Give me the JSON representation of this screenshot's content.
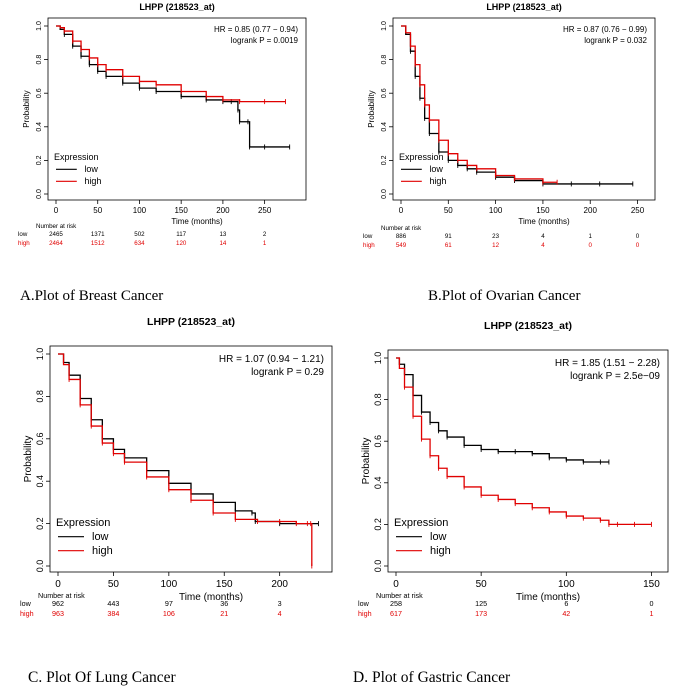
{
  "chart_data": [
    {
      "type": "line",
      "title": "LHPP (218523_at)",
      "caption": "A.Plot of Breast Cancer",
      "xlabel": "Time (months)",
      "ylabel": "Probability",
      "xlim": [
        0,
        290
      ],
      "ylim": [
        0,
        1.0
      ],
      "x_ticks": [
        0,
        50,
        100,
        150,
        200,
        250
      ],
      "y_ticks": [
        0.0,
        0.2,
        0.4,
        0.6,
        0.8,
        1.0
      ],
      "hr_text": "HR = 0.85 (0.77 − 0.94)",
      "logrank_text": "logrank P = 0.0019",
      "legend_title": "Expression",
      "legend_position": "bottom-left",
      "series": [
        {
          "name": "low",
          "color": "#000000",
          "x": [
            0,
            5,
            10,
            20,
            30,
            40,
            50,
            60,
            80,
            100,
            120,
            150,
            180,
            200,
            210,
            218,
            220,
            230,
            232,
            250,
            280
          ],
          "y": [
            1.0,
            0.98,
            0.95,
            0.88,
            0.82,
            0.77,
            0.73,
            0.7,
            0.66,
            0.63,
            0.61,
            0.58,
            0.56,
            0.55,
            0.55,
            0.5,
            0.43,
            0.43,
            0.28,
            0.28,
            0.28
          ]
        },
        {
          "name": "high",
          "color": "#e00000",
          "x": [
            0,
            5,
            10,
            20,
            30,
            40,
            50,
            60,
            80,
            100,
            120,
            150,
            180,
            200,
            220,
            250,
            275
          ],
          "y": [
            1.0,
            0.99,
            0.97,
            0.91,
            0.86,
            0.81,
            0.77,
            0.74,
            0.7,
            0.67,
            0.65,
            0.61,
            0.58,
            0.56,
            0.55,
            0.55,
            0.55
          ]
        }
      ],
      "risk_table": {
        "header": "Number at risk",
        "rows": [
          {
            "name": "low",
            "values": [
              "2465",
              "1371",
              "502",
              "117",
              "13",
              "2"
            ]
          },
          {
            "name": "high",
            "values": [
              "2464",
              "1512",
              "634",
              "120",
              "14",
              "1"
            ]
          }
        ]
      }
    },
    {
      "type": "line",
      "title": "LHPP (218523_at)",
      "caption": "B.Plot of Ovarian Cancer",
      "xlabel": "Time (months)",
      "ylabel": "Probability",
      "xlim": [
        0,
        260
      ],
      "ylim": [
        0,
        1.0
      ],
      "x_ticks": [
        0,
        50,
        100,
        150,
        200,
        250
      ],
      "y_ticks": [
        0.0,
        0.2,
        0.4,
        0.6,
        0.8,
        1.0
      ],
      "hr_text": "HR = 0.87 (0.76 − 0.99)",
      "logrank_text": "logrank P = 0.032",
      "legend_title": "Expression",
      "legend_position": "bottom-left",
      "series": [
        {
          "name": "low",
          "color": "#000000",
          "x": [
            0,
            5,
            10,
            15,
            20,
            25,
            30,
            40,
            50,
            60,
            70,
            80,
            100,
            120,
            150,
            180,
            210,
            245
          ],
          "y": [
            1.0,
            0.95,
            0.85,
            0.7,
            0.57,
            0.45,
            0.36,
            0.25,
            0.2,
            0.17,
            0.15,
            0.13,
            0.1,
            0.08,
            0.06,
            0.06,
            0.06,
            0.06
          ]
        },
        {
          "name": "high",
          "color": "#e00000",
          "x": [
            0,
            5,
            10,
            15,
            20,
            25,
            30,
            40,
            50,
            60,
            70,
            80,
            100,
            120,
            150,
            165
          ],
          "y": [
            1.0,
            0.96,
            0.88,
            0.77,
            0.65,
            0.53,
            0.44,
            0.32,
            0.24,
            0.2,
            0.17,
            0.15,
            0.11,
            0.09,
            0.07,
            0.07
          ]
        }
      ],
      "risk_table": {
        "header": "Number at risk",
        "rows": [
          {
            "name": "low",
            "values": [
              "886",
              "91",
              "23",
              "4",
              "1",
              "0"
            ]
          },
          {
            "name": "high",
            "values": [
              "549",
              "61",
              "12",
              "4",
              "0",
              "0"
            ]
          }
        ]
      }
    },
    {
      "type": "line",
      "title": "LHPP (218523_at)",
      "caption": "C. Plot Of  Lung Cancer",
      "xlabel": "Time (months)",
      "ylabel": "Probability",
      "xlim": [
        0,
        240
      ],
      "ylim": [
        0,
        1.0
      ],
      "x_ticks": [
        0,
        50,
        100,
        150,
        200
      ],
      "y_ticks": [
        0.0,
        0.2,
        0.4,
        0.6,
        0.8,
        1.0
      ],
      "hr_text": "HR = 1.07 (0.94 − 1.21)",
      "logrank_text": "logrank P = 0.29",
      "legend_title": "Expression",
      "legend_position": "bottom-left",
      "series": [
        {
          "name": "low",
          "color": "#000000",
          "x": [
            0,
            5,
            10,
            20,
            30,
            40,
            50,
            60,
            80,
            100,
            120,
            140,
            160,
            175,
            178,
            200,
            235
          ],
          "y": [
            1.0,
            0.96,
            0.9,
            0.79,
            0.69,
            0.6,
            0.55,
            0.51,
            0.45,
            0.39,
            0.34,
            0.3,
            0.26,
            0.25,
            0.21,
            0.2,
            0.2
          ]
        },
        {
          "name": "high",
          "color": "#e00000",
          "x": [
            0,
            5,
            10,
            20,
            30,
            40,
            50,
            60,
            80,
            100,
            120,
            140,
            160,
            180,
            200,
            215,
            225,
            228,
            229
          ],
          "y": [
            1.0,
            0.95,
            0.88,
            0.76,
            0.66,
            0.58,
            0.53,
            0.49,
            0.42,
            0.36,
            0.31,
            0.25,
            0.22,
            0.21,
            0.21,
            0.2,
            0.2,
            0.2,
            0.0
          ]
        }
      ],
      "risk_table": {
        "header": "Number at risk",
        "rows": [
          {
            "name": "low",
            "values": [
              "962",
              "443",
              "97",
              "36",
              "3"
            ]
          },
          {
            "name": "high",
            "values": [
              "963",
              "384",
              "106",
              "21",
              "4"
            ]
          }
        ]
      }
    },
    {
      "type": "line",
      "title": "LHPP (218523_at)",
      "caption": "D. Plot of  Gastric Cancer",
      "xlabel": "Time (months)",
      "ylabel": "Probability",
      "xlim": [
        0,
        155
      ],
      "ylim": [
        0,
        1.0
      ],
      "x_ticks": [
        0,
        50,
        100,
        150
      ],
      "y_ticks": [
        0.0,
        0.2,
        0.4,
        0.6,
        0.8,
        1.0
      ],
      "hr_text": "HR = 1.85 (1.51 − 2.28)",
      "logrank_text": "logrank P = 2.5e−09",
      "legend_title": "Expression",
      "legend_position": "bottom-left",
      "series": [
        {
          "name": "low",
          "color": "#000000",
          "x": [
            0,
            2,
            5,
            10,
            15,
            20,
            25,
            30,
            40,
            50,
            60,
            70,
            80,
            90,
            100,
            110,
            120,
            125
          ],
          "y": [
            1.0,
            0.97,
            0.92,
            0.82,
            0.74,
            0.69,
            0.65,
            0.62,
            0.58,
            0.56,
            0.55,
            0.55,
            0.54,
            0.52,
            0.51,
            0.5,
            0.5,
            0.5
          ]
        },
        {
          "name": "high",
          "color": "#e00000",
          "x": [
            0,
            2,
            5,
            10,
            15,
            20,
            25,
            30,
            40,
            50,
            60,
            70,
            80,
            90,
            100,
            110,
            120,
            125,
            130,
            140,
            150
          ],
          "y": [
            1.0,
            0.95,
            0.86,
            0.72,
            0.61,
            0.53,
            0.47,
            0.43,
            0.38,
            0.34,
            0.32,
            0.3,
            0.28,
            0.26,
            0.24,
            0.23,
            0.22,
            0.2,
            0.2,
            0.2,
            0.2
          ]
        }
      ],
      "risk_table": {
        "header": "Number at risk",
        "rows": [
          {
            "name": "low",
            "values": [
              "258",
              "125",
              "6",
              "0"
            ]
          },
          {
            "name": "high",
            "values": [
              "617",
              "173",
              "42",
              "1"
            ]
          }
        ]
      }
    }
  ]
}
